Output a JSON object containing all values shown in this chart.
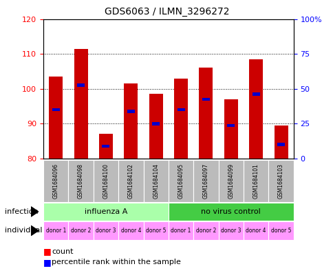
{
  "title": "GDS6063 / ILMN_3296272",
  "samples": [
    "GSM1684096",
    "GSM1684098",
    "GSM1684100",
    "GSM1684102",
    "GSM1684104",
    "GSM1684095",
    "GSM1684097",
    "GSM1684099",
    "GSM1684101",
    "GSM1684103"
  ],
  "bar_values": [
    103.5,
    111.5,
    87.0,
    101.5,
    98.5,
    103.0,
    106.0,
    97.0,
    108.5,
    89.5
  ],
  "blue_marker_values": [
    94.0,
    101.0,
    83.5,
    93.5,
    90.0,
    94.0,
    97.0,
    89.5,
    98.5,
    84.0
  ],
  "ylim": [
    80,
    120
  ],
  "yticks_left": [
    80,
    90,
    100,
    110,
    120
  ],
  "yticks_right": [
    0,
    25,
    50,
    75,
    100
  ],
  "bar_color": "#cc0000",
  "blue_color": "#0000cc",
  "bar_bottom": 80,
  "infection_groups": [
    {
      "label": "influenza A",
      "start": 0,
      "end": 5,
      "color": "#aaffaa"
    },
    {
      "label": "no virus control",
      "start": 5,
      "end": 10,
      "color": "#44cc44"
    }
  ],
  "individual_labels": [
    "donor 1",
    "donor 2",
    "donor 3",
    "donor 4",
    "donor 5",
    "donor 1",
    "donor 2",
    "donor 3",
    "donor 4",
    "donor 5"
  ],
  "individual_color": "#ff99ff",
  "sample_label_color": "#bbbbbb",
  "bar_width": 0.55
}
